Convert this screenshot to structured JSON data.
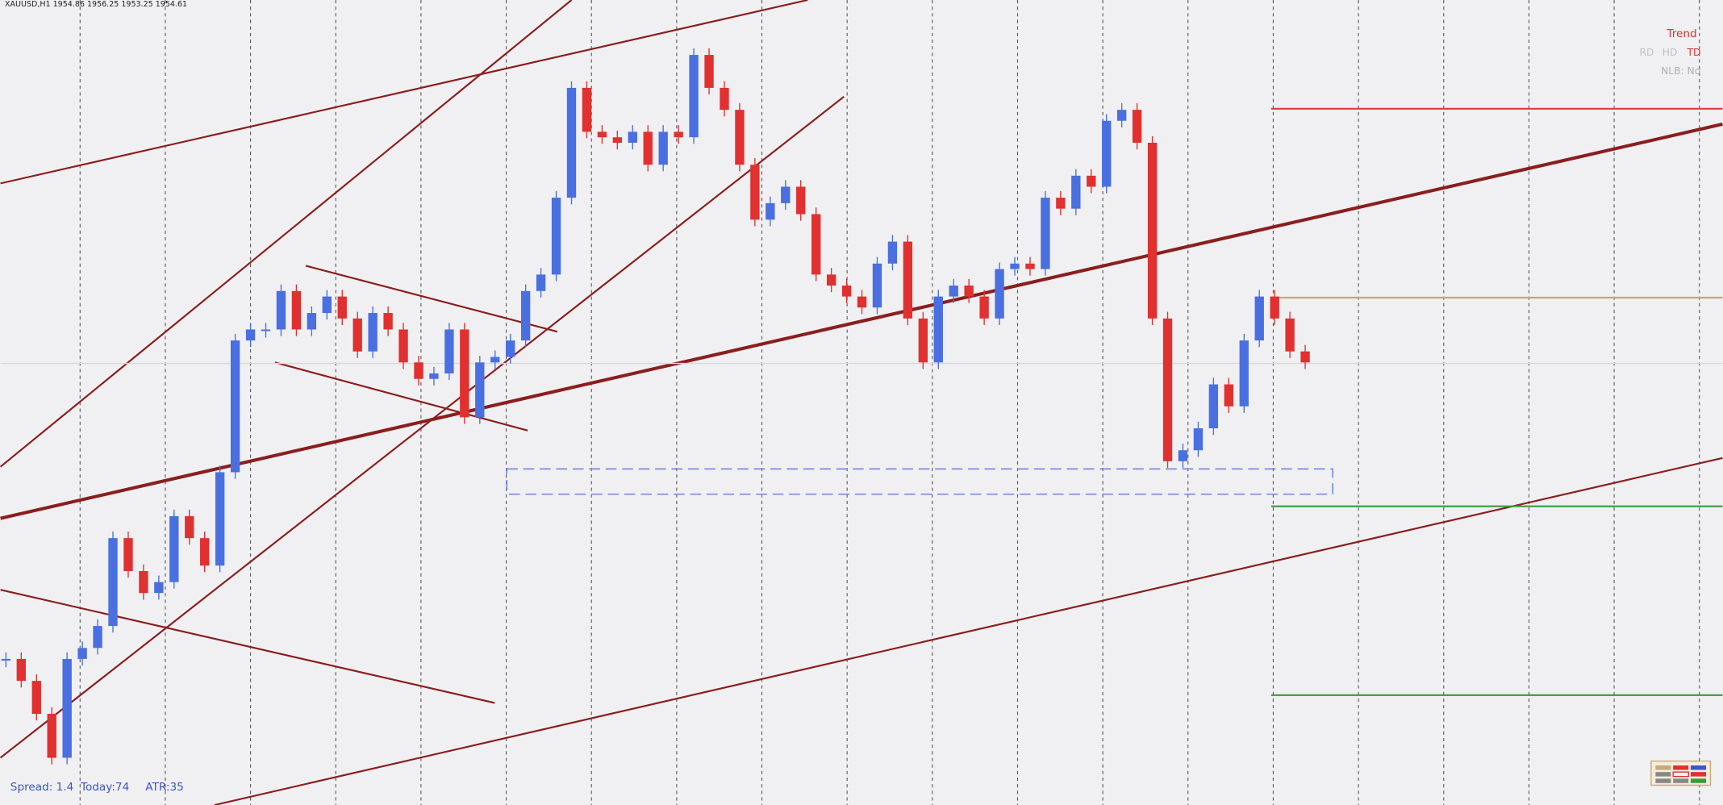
{
  "chart_data": {
    "type": "candlestick",
    "title": "XAUUSD,H1 1954.86 1956.25 1953.25 1954.61",
    "indicator": {
      "title": "Trend",
      "modes": [
        "RD",
        "HD",
        "TD"
      ],
      "active_mode": "TD",
      "nlb": "NLB: No"
    },
    "footer": [
      "Spread: 1.4",
      "Today:74",
      "ATR:35"
    ],
    "ylim": [
      1914.4,
      1987.7
    ],
    "bull_color": "#4a6fe0",
    "bear_color": "#e03030",
    "values": [
      1927.7,
      1925.7,
      1922.7,
      1918.7,
      1927.7,
      1928.7,
      1930.7,
      1938.7,
      1935.7,
      1933.7,
      1934.7,
      1940.7,
      1938.7,
      1936.2,
      1944.7,
      1956.7,
      1957.7,
      1957.7,
      1961.2,
      1957.7,
      1959.2,
      1960.7,
      1958.7,
      1955.7,
      1959.2,
      1957.7,
      1954.7,
      1953.2,
      1953.7,
      1957.7,
      1949.7,
      1954.7,
      1955.2,
      1956.7,
      1961.2,
      1962.7,
      1969.7,
      1979.7,
      1975.7,
      1975.2,
      1974.7,
      1975.7,
      1972.7,
      1975.7,
      1975.2,
      1982.7,
      1979.7,
      1977.7,
      1972.7,
      1967.7,
      1969.2,
      1970.7,
      1968.2,
      1962.7,
      1961.7,
      1960.7,
      1959.7,
      1963.7,
      1965.7,
      1958.7,
      1954.7,
      1960.7,
      1961.7,
      1960.7,
      1958.7,
      1963.2,
      1963.7,
      1963.2,
      1969.7,
      1968.7,
      1971.7,
      1970.7,
      1976.7,
      1977.7,
      1974.7,
      1958.7,
      1945.7,
      1946.7,
      1948.7,
      1952.7,
      1950.7,
      1956.7,
      1960.7,
      1958.7,
      1955.7,
      1954.7
    ],
    "levels": [
      {
        "value": 1977.8,
        "color": "#e03a3a"
      },
      {
        "value": 1960.6,
        "color": "#c8a878"
      },
      {
        "value": 1941.6,
        "color": "#3a9a3a"
      },
      {
        "value": 1924.4,
        "color": "#3a9a3a"
      }
    ],
    "zone": [
      1942.7,
      1945.0
    ],
    "zone_color": "#7a8ae8",
    "bid": 1954.61
  }
}
